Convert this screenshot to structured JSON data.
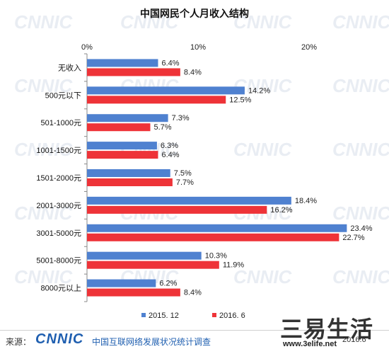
{
  "chart_data": {
    "type": "bar",
    "orientation": "horizontal",
    "title": "中国网民个人月收入结构",
    "categories": [
      "无收入",
      "500元以下",
      "501-1000元",
      "1001-1500元",
      "1501-2000元",
      "2001-3000元",
      "3001-5000元",
      "5001-8000元",
      "8000元以上"
    ],
    "series": [
      {
        "name": "2015. 12",
        "color": "#4f81d0",
        "values": [
          6.4,
          14.2,
          7.3,
          6.3,
          7.5,
          18.4,
          23.4,
          10.3,
          6.2
        ]
      },
      {
        "name": "2016. 6",
        "color": "#ee3338",
        "values": [
          8.4,
          12.5,
          5.7,
          6.4,
          7.7,
          16.2,
          22.7,
          11.9,
          8.4
        ]
      }
    ],
    "xlim": [
      0,
      25
    ],
    "xticks": [
      0,
      10,
      20
    ],
    "xtick_labels": [
      "0%",
      "10%",
      "20%"
    ],
    "value_suffix": "%",
    "grid": false,
    "legend_position": "bottom"
  },
  "watermark": {
    "text": "CNNIC"
  },
  "footer": {
    "source_label": "来源：",
    "logo": "CNNIC",
    "org": "中国互联网络发展状况统计调查",
    "date": "2016.6"
  },
  "site_watermark": {
    "name": "三易生活",
    "url": "www.3elife.net"
  }
}
